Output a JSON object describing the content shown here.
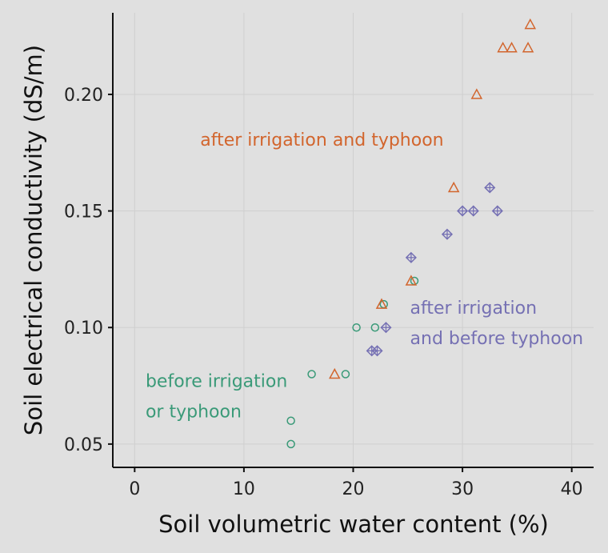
{
  "chart_data": {
    "type": "scatter",
    "xlabel": "Soil volumetric water content (%)",
    "ylabel": "Soil electrical conductivity (dS/m)",
    "xlim": [
      -2,
      42
    ],
    "ylim": [
      0.04,
      0.235
    ],
    "x_ticks": [
      0,
      10,
      20,
      30,
      40
    ],
    "x_tick_labels": [
      "0",
      "10",
      "20",
      "30",
      "40"
    ],
    "y_ticks": [
      0.05,
      0.1,
      0.15,
      0.2
    ],
    "y_tick_labels": [
      "0.05",
      "0.10",
      "0.15",
      "0.20"
    ],
    "grid": true,
    "background": "#e0e0e0",
    "series": [
      {
        "marker": "circle",
        "color": "#3a9a78",
        "points": [
          {
            "x": 14.3,
            "y": 0.05
          },
          {
            "x": 14.3,
            "y": 0.06
          },
          {
            "x": 16.2,
            "y": 0.08
          },
          {
            "x": 19.3,
            "y": 0.08
          },
          {
            "x": 20.3,
            "y": 0.1
          },
          {
            "x": 22.0,
            "y": 0.1
          },
          {
            "x": 22.8,
            "y": 0.11
          },
          {
            "x": 25.6,
            "y": 0.12
          }
        ]
      },
      {
        "marker": "triangle",
        "color": "#d2652d",
        "points": [
          {
            "x": 18.3,
            "y": 0.08
          },
          {
            "x": 22.6,
            "y": 0.11
          },
          {
            "x": 25.3,
            "y": 0.12
          },
          {
            "x": 29.2,
            "y": 0.16
          },
          {
            "x": 31.3,
            "y": 0.2
          },
          {
            "x": 33.7,
            "y": 0.22
          },
          {
            "x": 34.5,
            "y": 0.22
          },
          {
            "x": 36.0,
            "y": 0.22
          },
          {
            "x": 36.2,
            "y": 0.23
          }
        ]
      },
      {
        "marker": "diamond-plus",
        "color": "#7570b3",
        "points": [
          {
            "x": 21.7,
            "y": 0.09
          },
          {
            "x": 22.2,
            "y": 0.09
          },
          {
            "x": 23.0,
            "y": 0.1
          },
          {
            "x": 25.3,
            "y": 0.13
          },
          {
            "x": 28.6,
            "y": 0.14
          },
          {
            "x": 30.0,
            "y": 0.15
          },
          {
            "x": 31.0,
            "y": 0.15
          },
          {
            "x": 33.2,
            "y": 0.15
          },
          {
            "x": 32.5,
            "y": 0.16
          }
        ]
      }
    ],
    "annotations": [
      {
        "lines": [
          "after irrigation and typhoon"
        ],
        "color": "#d2652d",
        "x": 6.0,
        "y": 0.178
      },
      {
        "lines": [
          "after irrigation",
          "and before typhoon"
        ],
        "color": "#7570b3",
        "x": 25.2,
        "y": 0.106
      },
      {
        "lines": [
          "before irrigation",
          "or typhoon"
        ],
        "color": "#3a9a78",
        "x": 1.0,
        "y": 0.0745
      }
    ]
  }
}
